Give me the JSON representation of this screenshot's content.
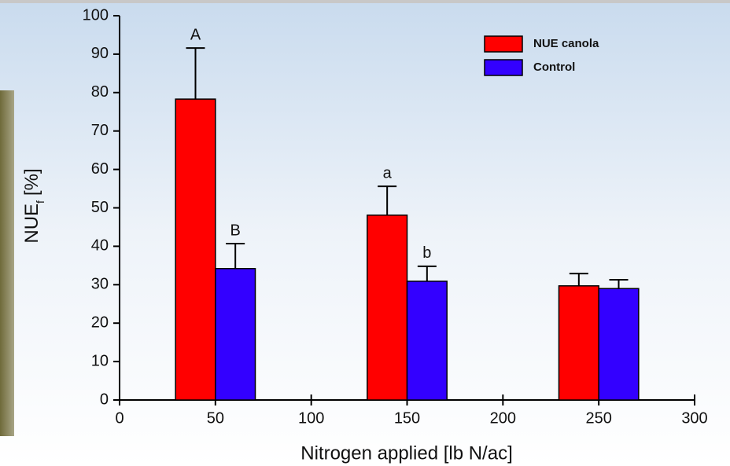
{
  "chart_data": {
    "type": "bar",
    "x": [
      50,
      150,
      250
    ],
    "series": [
      {
        "name": "NUE canola",
        "color": "#ff0000",
        "values": [
          78.3,
          48.1,
          29.7
        ],
        "errors": [
          13.3,
          7.5,
          3.2
        ],
        "letters": [
          "A",
          "a",
          null
        ]
      },
      {
        "name": "Control",
        "color": "#3300ff",
        "values": [
          34.2,
          30.9,
          29.0
        ],
        "errors": [
          6.5,
          3.9,
          2.3
        ],
        "letters": [
          "B",
          "b",
          null
        ]
      }
    ],
    "xlabel": "Nitrogen applied [lb N/ac]",
    "ylabel": "NUE",
    "ylabel_sub": "f",
    "ylabel_unit": "[%]",
    "xlim": [
      0,
      300
    ],
    "xticks": [
      0,
      50,
      100,
      150,
      200,
      250,
      300
    ],
    "ylim": [
      0,
      100
    ],
    "yticks": [
      0,
      10,
      20,
      30,
      40,
      50,
      60,
      70,
      80,
      90,
      100
    ],
    "legend": "upper right"
  }
}
